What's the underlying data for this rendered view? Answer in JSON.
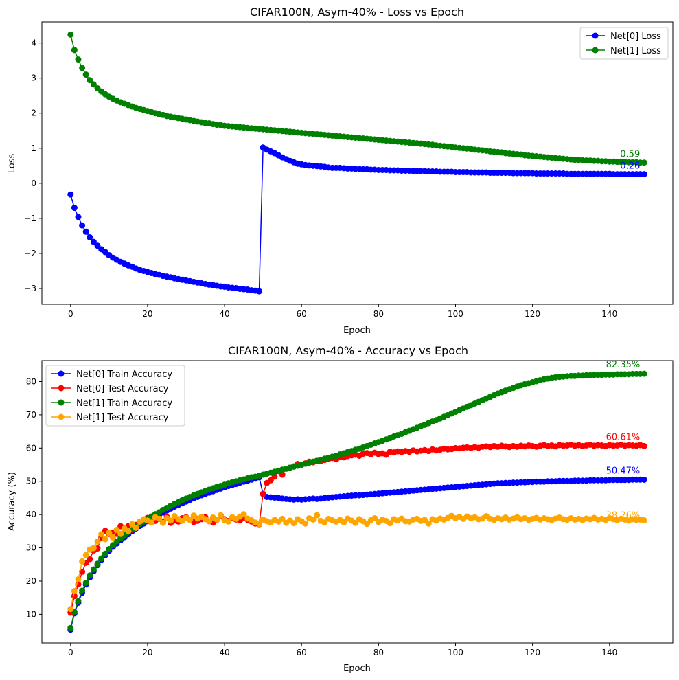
{
  "chart_data": [
    {
      "type": "line",
      "title": "CIFAR100N, Asym-40% - Loss vs Epoch",
      "xlabel": "Epoch",
      "ylabel": "Loss",
      "xlim": [
        -7.45,
        156.45
      ],
      "ylim": [
        -3.45,
        4.6
      ],
      "xticks": [
        0,
        20,
        40,
        60,
        80,
        100,
        120,
        140
      ],
      "xtick_labels": [
        "0",
        "20",
        "40",
        "60",
        "80",
        "100",
        "120",
        "140"
      ],
      "yticks": [
        -3,
        -2,
        -1,
        0,
        1,
        2,
        3,
        4
      ],
      "ytick_labels": [
        "−3",
        "−2",
        "−1",
        "0",
        "1",
        "2",
        "3",
        "4"
      ],
      "grid": false,
      "legend_position": "upper right",
      "series": [
        {
          "name": "Net[0] Loss",
          "color": "#0000ff",
          "values": [
            -0.32,
            -0.7,
            -0.96,
            -1.2,
            -1.38,
            -1.54,
            -1.67,
            -1.78,
            -1.88,
            -1.96,
            -2.05,
            -2.12,
            -2.18,
            -2.24,
            -2.29,
            -2.34,
            -2.38,
            -2.43,
            -2.47,
            -2.5,
            -2.53,
            -2.56,
            -2.59,
            -2.61,
            -2.64,
            -2.66,
            -2.68,
            -2.71,
            -2.73,
            -2.75,
            -2.77,
            -2.79,
            -2.81,
            -2.83,
            -2.85,
            -2.87,
            -2.89,
            -2.9,
            -2.92,
            -2.94,
            -2.95,
            -2.97,
            -2.98,
            -2.99,
            -3.01,
            -3.02,
            -3.03,
            -3.05,
            -3.06,
            -3.08,
            1.02,
            0.96,
            0.91,
            0.86,
            0.8,
            0.74,
            0.69,
            0.64,
            0.6,
            0.56,
            0.54,
            0.52,
            0.51,
            0.5,
            0.49,
            0.48,
            0.47,
            0.45,
            0.44,
            0.44,
            0.44,
            0.43,
            0.42,
            0.42,
            0.41,
            0.41,
            0.4,
            0.4,
            0.39,
            0.39,
            0.38,
            0.38,
            0.38,
            0.37,
            0.37,
            0.37,
            0.36,
            0.36,
            0.36,
            0.35,
            0.35,
            0.35,
            0.35,
            0.34,
            0.34,
            0.34,
            0.33,
            0.33,
            0.33,
            0.33,
            0.32,
            0.32,
            0.32,
            0.32,
            0.31,
            0.31,
            0.31,
            0.31,
            0.31,
            0.3,
            0.3,
            0.3,
            0.3,
            0.3,
            0.3,
            0.29,
            0.29,
            0.29,
            0.29,
            0.29,
            0.29,
            0.28,
            0.28,
            0.28,
            0.28,
            0.28,
            0.28,
            0.28,
            0.28,
            0.27,
            0.27,
            0.27,
            0.27,
            0.27,
            0.27,
            0.27,
            0.27,
            0.27,
            0.27,
            0.27,
            0.27,
            0.26,
            0.26,
            0.26,
            0.26,
            0.26,
            0.26,
            0.26,
            0.26,
            0.26
          ]
        },
        {
          "name": "Net[1] Loss",
          "color": "#008000",
          "values": [
            4.24,
            3.8,
            3.53,
            3.29,
            3.1,
            2.94,
            2.82,
            2.71,
            2.62,
            2.54,
            2.47,
            2.41,
            2.36,
            2.31,
            2.27,
            2.23,
            2.19,
            2.15,
            2.12,
            2.09,
            2.06,
            2.03,
            2.0,
            1.97,
            1.95,
            1.92,
            1.9,
            1.88,
            1.86,
            1.84,
            1.82,
            1.8,
            1.78,
            1.76,
            1.74,
            1.72,
            1.71,
            1.69,
            1.67,
            1.66,
            1.64,
            1.63,
            1.62,
            1.61,
            1.6,
            1.59,
            1.58,
            1.57,
            1.56,
            1.55,
            1.54,
            1.53,
            1.52,
            1.51,
            1.5,
            1.49,
            1.48,
            1.47,
            1.46,
            1.45,
            1.44,
            1.43,
            1.42,
            1.41,
            1.4,
            1.39,
            1.38,
            1.37,
            1.36,
            1.35,
            1.34,
            1.33,
            1.32,
            1.31,
            1.3,
            1.29,
            1.28,
            1.27,
            1.26,
            1.25,
            1.24,
            1.23,
            1.22,
            1.21,
            1.2,
            1.19,
            1.18,
            1.17,
            1.16,
            1.15,
            1.14,
            1.13,
            1.12,
            1.11,
            1.1,
            1.08,
            1.07,
            1.06,
            1.05,
            1.04,
            1.02,
            1.01,
            1.0,
            0.99,
            0.98,
            0.96,
            0.95,
            0.94,
            0.93,
            0.91,
            0.9,
            0.89,
            0.88,
            0.86,
            0.85,
            0.84,
            0.83,
            0.82,
            0.8,
            0.79,
            0.78,
            0.77,
            0.76,
            0.75,
            0.74,
            0.73,
            0.72,
            0.71,
            0.7,
            0.69,
            0.68,
            0.67,
            0.67,
            0.66,
            0.65,
            0.65,
            0.64,
            0.64,
            0.63,
            0.63,
            0.62,
            0.62,
            0.61,
            0.61,
            0.61,
            0.6,
            0.6,
            0.6,
            0.59,
            0.59
          ]
        }
      ],
      "annotations": [
        {
          "text": "0.26",
          "color": "#0000ff"
        },
        {
          "text": "0.59",
          "color": "#008000"
        }
      ]
    },
    {
      "type": "line",
      "title": "CIFAR100N, Asym-40% - Accuracy vs Epoch",
      "xlabel": "Epoch",
      "ylabel": "Accuracy (%)",
      "xlim": [
        -7.45,
        156.45
      ],
      "ylim": [
        1.4,
        86.3
      ],
      "xticks": [
        0,
        20,
        40,
        60,
        80,
        100,
        120,
        140
      ],
      "xtick_labels": [
        "0",
        "20",
        "40",
        "60",
        "80",
        "100",
        "120",
        "140"
      ],
      "yticks": [
        10,
        20,
        30,
        40,
        50,
        60,
        70,
        80
      ],
      "ytick_labels": [
        "10",
        "20",
        "30",
        "40",
        "50",
        "60",
        "70",
        "80"
      ],
      "grid": false,
      "legend_position": "upper left",
      "series": [
        {
          "name": "Net[0] Train Accuracy",
          "color": "#0000ff",
          "values": [
            5.4,
            10.3,
            13.5,
            16.5,
            19.0,
            21.1,
            23.0,
            24.8,
            26.4,
            27.8,
            29.1,
            30.3,
            31.3,
            32.3,
            33.2,
            34.1,
            35.0,
            35.8,
            36.6,
            37.3,
            38.0,
            38.7,
            39.4,
            40.0,
            40.6,
            41.2,
            41.8,
            42.4,
            42.9,
            43.4,
            43.9,
            44.4,
            44.9,
            45.3,
            45.8,
            46.2,
            46.6,
            47.0,
            47.4,
            47.8,
            48.2,
            48.6,
            48.9,
            49.2,
            49.6,
            49.9,
            50.2,
            50.5,
            50.8,
            51.2,
            46.2,
            45.3,
            45.2,
            45.1,
            45.0,
            44.8,
            44.7,
            44.6,
            44.5,
            44.6,
            44.5,
            44.6,
            44.7,
            44.8,
            44.7,
            44.8,
            45.0,
            45.1,
            45.2,
            45.3,
            45.4,
            45.5,
            45.6,
            45.7,
            45.8,
            45.8,
            45.9,
            46.0,
            46.1,
            46.2,
            46.3,
            46.4,
            46.5,
            46.6,
            46.7,
            46.8,
            46.9,
            47.0,
            47.1,
            47.2,
            47.3,
            47.4,
            47.5,
            47.6,
            47.7,
            47.8,
            47.9,
            48.0,
            48.1,
            48.2,
            48.3,
            48.4,
            48.5,
            48.6,
            48.7,
            48.8,
            48.9,
            49.0,
            49.1,
            49.2,
            49.3,
            49.4,
            49.4,
            49.5,
            49.5,
            49.6,
            49.6,
            49.7,
            49.7,
            49.8,
            49.8,
            49.9,
            49.9,
            49.9,
            50.0,
            50.0,
            50.0,
            50.1,
            50.1,
            50.1,
            50.1,
            50.2,
            50.2,
            50.2,
            50.2,
            50.3,
            50.3,
            50.3,
            50.3,
            50.3,
            50.4,
            50.4,
            50.4,
            50.4,
            50.4,
            50.4,
            50.5,
            50.5,
            50.5,
            50.47
          ]
        },
        {
          "name": "Net[0] Test Accuracy",
          "color": "#ff0000",
          "values": [
            10.5,
            15.5,
            19.0,
            22.8,
            25.5,
            26.6,
            29.2,
            29.8,
            33.0,
            35.1,
            34.2,
            34.6,
            34.2,
            36.5,
            33.8,
            36.5,
            35.4,
            36.9,
            37.6,
            38.1,
            39.0,
            38.4,
            38.1,
            38.7,
            37.9,
            39.3,
            37.5,
            38.2,
            37.9,
            38.9,
            39.2,
            38.5,
            37.8,
            38.1,
            38.6,
            39.2,
            38.0,
            37.6,
            38.4,
            39.7,
            38.6,
            38.1,
            38.9,
            38.5,
            38.2,
            39.1,
            38.4,
            37.9,
            37.3,
            37.1,
            46.2,
            49.5,
            50.3,
            51.4,
            53.1,
            52.0,
            53.8,
            54.1,
            54.5,
            55.2,
            55.0,
            55.4,
            55.9,
            55.7,
            56.1,
            56.0,
            56.4,
            56.7,
            57.0,
            56.6,
            57.3,
            57.2,
            57.6,
            57.8,
            58.0,
            57.7,
            58.3,
            58.5,
            58.1,
            58.6,
            58.2,
            58.4,
            58.0,
            58.9,
            58.7,
            59.0,
            58.8,
            59.1,
            58.9,
            59.3,
            59.0,
            59.2,
            59.4,
            59.1,
            59.6,
            59.3,
            59.5,
            59.8,
            59.6,
            59.7,
            60.0,
            59.9,
            60.1,
            60.2,
            60.0,
            60.3,
            60.1,
            60.4,
            60.5,
            60.3,
            60.6,
            60.4,
            60.7,
            60.5,
            60.3,
            60.6,
            60.4,
            60.7,
            60.5,
            60.8,
            60.6,
            60.4,
            60.7,
            60.9,
            60.6,
            60.8,
            60.5,
            60.9,
            60.7,
            60.8,
            61.0,
            60.7,
            60.9,
            60.6,
            60.8,
            61.0,
            60.7,
            60.9,
            60.8,
            60.6,
            60.9,
            60.7,
            60.8,
            61.0,
            60.7,
            60.9,
            60.8,
            60.7,
            60.9,
            60.61
          ]
        },
        {
          "name": "Net[1] Train Accuracy",
          "color": "#008000",
          "values": [
            5.9,
            10.7,
            14.0,
            17.1,
            19.5,
            21.7,
            23.5,
            25.2,
            26.8,
            28.2,
            29.6,
            30.8,
            31.9,
            32.9,
            33.8,
            34.7,
            35.6,
            36.4,
            37.2,
            37.9,
            38.7,
            39.4,
            40.1,
            40.7,
            41.4,
            42.0,
            42.6,
            43.2,
            43.7,
            44.3,
            44.8,
            45.3,
            45.8,
            46.2,
            46.7,
            47.1,
            47.5,
            47.9,
            48.3,
            48.6,
            49.0,
            49.4,
            49.7,
            50.0,
            50.3,
            50.6,
            50.9,
            51.2,
            51.4,
            51.7,
            52.0,
            52.3,
            52.6,
            52.9,
            53.2,
            53.5,
            53.8,
            54.1,
            54.4,
            54.7,
            55.0,
            55.3,
            55.6,
            55.9,
            56.2,
            56.5,
            56.8,
            57.1,
            57.4,
            57.7,
            58.1,
            58.4,
            58.8,
            59.1,
            59.5,
            59.8,
            60.2,
            60.6,
            61.0,
            61.4,
            61.8,
            62.2,
            62.6,
            63.0,
            63.5,
            63.9,
            64.3,
            64.8,
            65.2,
            65.7,
            66.1,
            66.6,
            67.0,
            67.5,
            68.0,
            68.4,
            68.9,
            69.4,
            69.9,
            70.4,
            70.9,
            71.4,
            71.9,
            72.4,
            72.9,
            73.4,
            73.9,
            74.4,
            74.9,
            75.4,
            75.9,
            76.4,
            76.8,
            77.3,
            77.7,
            78.1,
            78.5,
            78.9,
            79.2,
            79.5,
            79.8,
            80.1,
            80.4,
            80.7,
            80.9,
            81.1,
            81.3,
            81.4,
            81.5,
            81.6,
            81.7,
            81.7,
            81.8,
            81.8,
            81.9,
            81.9,
            82.0,
            82.0,
            82.0,
            82.1,
            82.1,
            82.1,
            82.2,
            82.2,
            82.2,
            82.2,
            82.3,
            82.3,
            82.3,
            82.35
          ]
        },
        {
          "name": "Net[1] Test Accuracy",
          "color": "#ffa500",
          "values": [
            11.6,
            17.0,
            20.5,
            25.9,
            27.8,
            29.5,
            29.9,
            31.9,
            34.1,
            32.6,
            34.5,
            33.1,
            35.4,
            34.2,
            35.8,
            35.0,
            37.1,
            36.0,
            37.9,
            38.6,
            38.2,
            37.6,
            39.2,
            38.8,
            37.5,
            38.9,
            38.2,
            39.5,
            38.6,
            38.1,
            39.0,
            38.4,
            39.7,
            38.8,
            39.3,
            38.6,
            38.0,
            39.1,
            38.5,
            39.8,
            38.3,
            37.9,
            39.2,
            38.7,
            39.4,
            40.1,
            38.8,
            38.3,
            37.6,
            37.2,
            38.5,
            38.0,
            37.6,
            38.4,
            37.9,
            38.7,
            37.5,
            38.2,
            37.4,
            38.6,
            38.0,
            37.3,
            38.9,
            38.5,
            39.8,
            38.1,
            37.6,
            38.7,
            38.3,
            37.9,
            38.4,
            37.7,
            38.8,
            38.2,
            37.5,
            38.6,
            38.0,
            37.2,
            38.3,
            38.9,
            37.8,
            38.5,
            38.1,
            37.4,
            38.6,
            38.2,
            38.8,
            38.0,
            37.9,
            38.5,
            38.7,
            38.1,
            38.4,
            37.3,
            38.6,
            38.2,
            38.8,
            38.5,
            39.0,
            39.6,
            38.9,
            39.3,
            38.7,
            39.4,
            38.9,
            39.2,
            38.6,
            38.8,
            39.5,
            38.7,
            38.4,
            38.9,
            38.6,
            39.1,
            38.5,
            38.8,
            39.2,
            38.6,
            38.9,
            38.4,
            38.7,
            39.0,
            38.5,
            38.9,
            38.6,
            38.3,
            38.8,
            39.1,
            38.6,
            38.4,
            38.9,
            38.5,
            38.7,
            38.3,
            38.8,
            38.6,
            39.0,
            38.5,
            38.7,
            38.4,
            38.9,
            38.6,
            38.3,
            38.7,
            38.5,
            38.2,
            38.6,
            38.4,
            38.5,
            38.26
          ]
        }
      ],
      "annotations": [
        {
          "text": "82.35%",
          "color": "#008000"
        },
        {
          "text": "60.61%",
          "color": "#ff0000"
        },
        {
          "text": "50.47%",
          "color": "#0000ff"
        },
        {
          "text": "38.26%",
          "color": "#ffa500"
        }
      ]
    }
  ]
}
